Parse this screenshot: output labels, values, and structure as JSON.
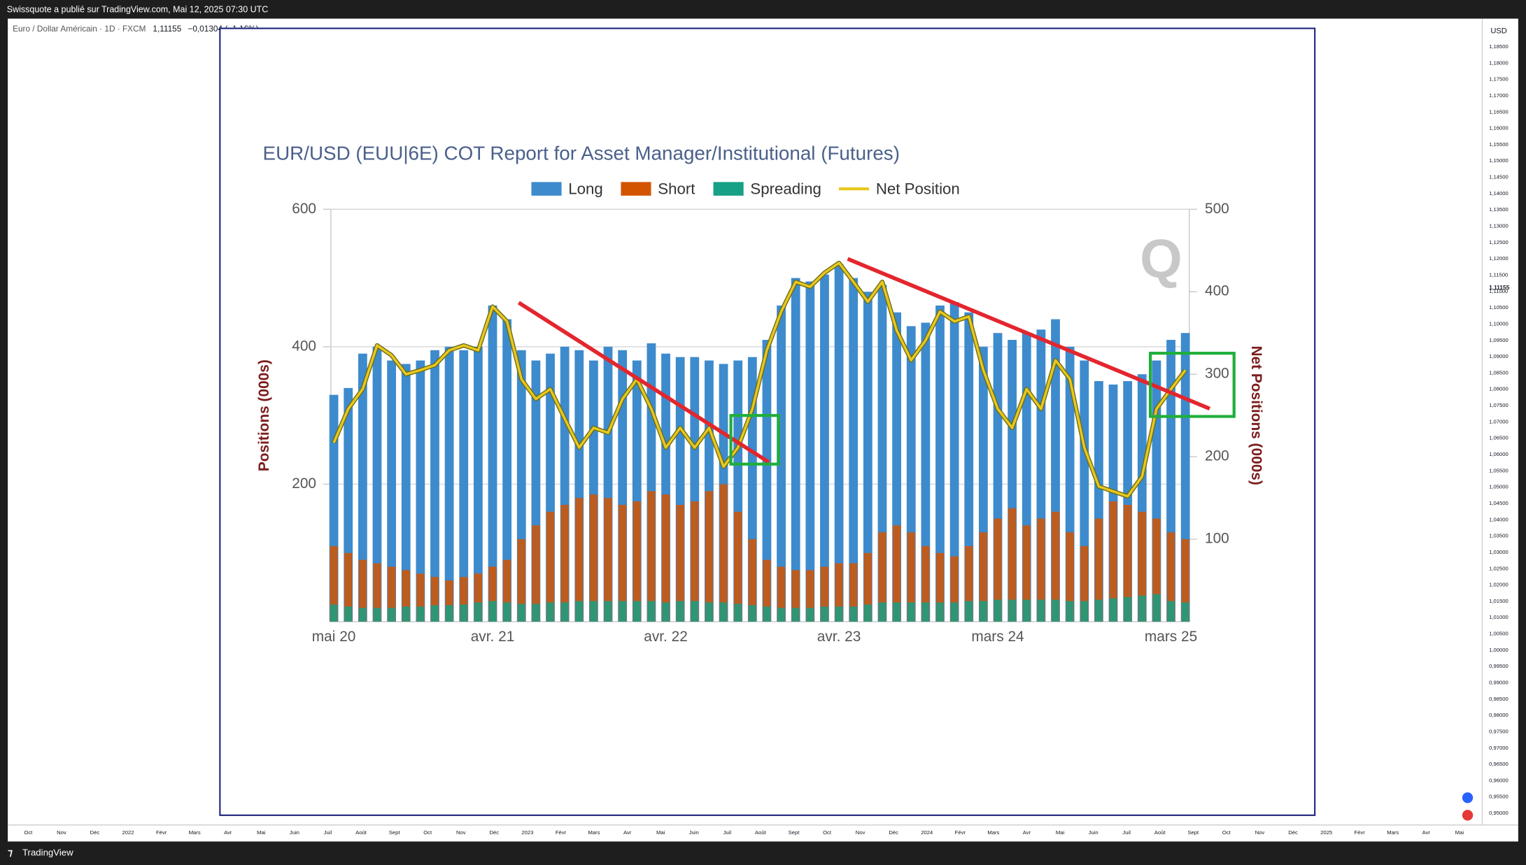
{
  "header": {
    "publisher": "Swissquote a publié sur TradingView.com, Mai 12, 2025 07:30 UTC"
  },
  "symbol": {
    "name": "Euro / Dollar Américain · 1D · FXCM",
    "price": "1,11155",
    "change": "−0,01304 (−1,16%)"
  },
  "price_axis": {
    "currency": "USD",
    "last": "1,11155",
    "labels": [
      "1,18500",
      "1,18000",
      "1,17500",
      "1,17000",
      "1,16500",
      "1,16000",
      "1,15500",
      "1,15000",
      "1,14500",
      "1,14000",
      "1,13500",
      "1,13000",
      "1,12500",
      "1,12000",
      "1,11500",
      "1,11000",
      "1,10500",
      "1,10000",
      "1,09500",
      "1,09000",
      "1,08500",
      "1,08000",
      "1,07500",
      "1,07000",
      "1,06500",
      "1,06000",
      "1,05500",
      "1,05000",
      "1,04500",
      "1,04000",
      "1,03500",
      "1,03000",
      "1,02500",
      "1,02000",
      "1,01500",
      "1,01000",
      "1,00500",
      "1,00000",
      "0,99500",
      "0,99000",
      "0,98500",
      "0,98000",
      "0,97500",
      "0,97000",
      "0,96500",
      "0,96000",
      "0,95500",
      "0,95000"
    ]
  },
  "time_axis": {
    "labels": [
      "Oct",
      "Nov",
      "Déc",
      "2022",
      "Févr",
      "Mars",
      "Avr",
      "Mai",
      "Juin",
      "Juil",
      "Août",
      "Sept",
      "Oct",
      "Nov",
      "Déc",
      "2023",
      "Févr",
      "Mars",
      "Avr",
      "Mai",
      "Juin",
      "Juil",
      "Août",
      "Sept",
      "Oct",
      "Nov",
      "Déc",
      "2024",
      "Févr",
      "Mars",
      "Avr",
      "Mai",
      "Juin",
      "Juil",
      "Août",
      "Sept",
      "Oct",
      "Nov",
      "Déc",
      "2025",
      "Févr",
      "Mars",
      "Avr",
      "Mai"
    ]
  },
  "footer": {
    "brand": "TradingView"
  },
  "chart_data": {
    "type": "bar",
    "title": "EUR/USD (EUU|6E) COT Report for Asset Manager/Institutional (Futures)",
    "y_label": "Positions (000s)",
    "y2_label": "Net Positions (000s)",
    "watermark": "Q",
    "grid": true,
    "categories": [
      "mai 20",
      null,
      null,
      null,
      null,
      null,
      null,
      null,
      null,
      null,
      null,
      "avr. 21",
      null,
      null,
      null,
      null,
      null,
      null,
      null,
      null,
      null,
      null,
      null,
      "avr. 22",
      null,
      null,
      null,
      null,
      null,
      null,
      null,
      null,
      null,
      null,
      null,
      "avr. 23",
      null,
      null,
      null,
      null,
      null,
      null,
      null,
      null,
      null,
      null,
      "mars 24",
      null,
      null,
      null,
      null,
      null,
      null,
      null,
      null,
      null,
      null,
      null,
      "mars 25",
      null
    ],
    "ylim": [
      0,
      600
    ],
    "yticks": [
      200,
      400,
      600
    ],
    "y2lim": [
      0,
      500
    ],
    "y2ticks": [
      100,
      200,
      300,
      400,
      500
    ],
    "series": [
      {
        "name": "Long",
        "color": "#3d8bcd",
        "values": [
          330,
          340,
          390,
          400,
          380,
          375,
          380,
          395,
          400,
          395,
          400,
          460,
          440,
          395,
          380,
          390,
          400,
          395,
          380,
          400,
          395,
          380,
          405,
          390,
          385,
          385,
          380,
          375,
          380,
          385,
          410,
          460,
          500,
          495,
          505,
          520,
          500,
          480,
          490,
          450,
          430,
          435,
          460,
          465,
          450,
          400,
          420,
          410,
          420,
          425,
          440,
          400,
          380,
          350,
          345,
          350,
          360,
          380,
          410,
          420
        ]
      },
      {
        "name": "Short",
        "color": "#d35400",
        "values": [
          110,
          100,
          90,
          85,
          80,
          75,
          70,
          65,
          60,
          65,
          70,
          80,
          90,
          120,
          140,
          160,
          170,
          180,
          185,
          180,
          170,
          175,
          190,
          185,
          170,
          175,
          190,
          200,
          160,
          120,
          90,
          80,
          75,
          75,
          80,
          85,
          85,
          100,
          130,
          140,
          130,
          110,
          100,
          95,
          110,
          130,
          150,
          165,
          140,
          150,
          160,
          130,
          110,
          150,
          175,
          170,
          160,
          150,
          130,
          120
        ]
      },
      {
        "name": "Spreading",
        "color": "#16a085",
        "values": [
          25,
          22,
          20,
          20,
          20,
          22,
          22,
          24,
          24,
          25,
          28,
          30,
          28,
          26,
          26,
          28,
          28,
          30,
          30,
          30,
          30,
          30,
          30,
          28,
          30,
          30,
          28,
          28,
          26,
          24,
          22,
          20,
          20,
          20,
          22,
          22,
          22,
          25,
          28,
          28,
          28,
          28,
          28,
          28,
          30,
          30,
          32,
          32,
          32,
          32,
          32,
          30,
          30,
          32,
          34,
          36,
          38,
          40,
          30,
          28
        ]
      },
      {
        "name": "Net Position",
        "color": "#e8c81e",
        "type": "line",
        "axis": "y2",
        "values": [
          217,
          258,
          282,
          335,
          323,
          300,
          305,
          311,
          329,
          335,
          329,
          382,
          364,
          294,
          270,
          282,
          246,
          211,
          235,
          229,
          270,
          294,
          258,
          211,
          235,
          211,
          235,
          188,
          211,
          258,
          329,
          376,
          412,
          406,
          423,
          435,
          412,
          388,
          412,
          353,
          317,
          341,
          376,
          364,
          370,
          305,
          258,
          235,
          282,
          258,
          317,
          294,
          211,
          164,
          158,
          152,
          176,
          258,
          282,
          305
        ]
      }
    ]
  }
}
